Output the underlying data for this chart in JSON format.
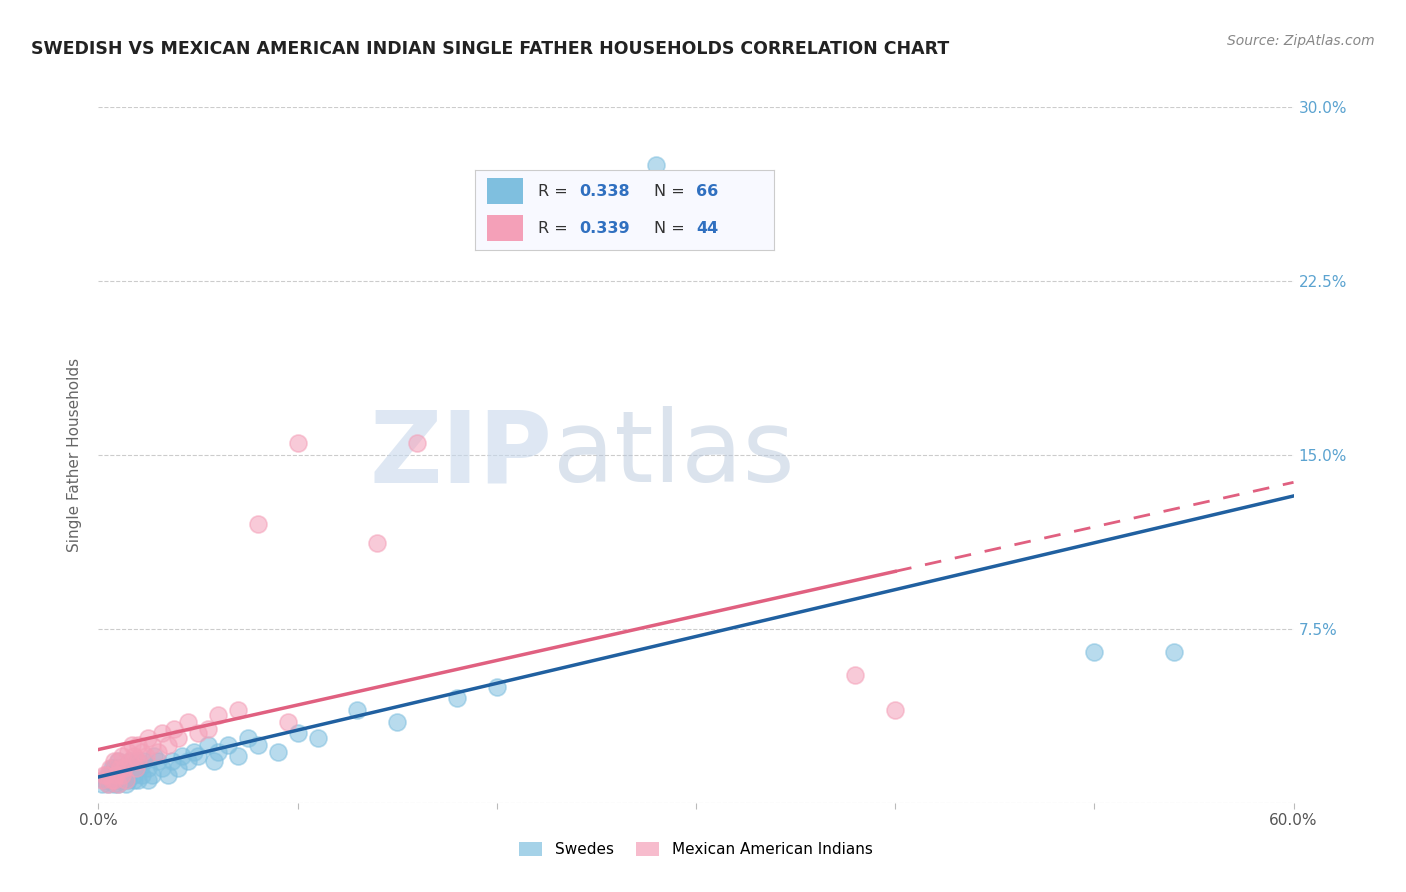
{
  "title": "SWEDISH VS MEXICAN AMERICAN INDIAN SINGLE FATHER HOUSEHOLDS CORRELATION CHART",
  "source": "Source: ZipAtlas.com",
  "ylabel": "Single Father Households",
  "xlim": [
    0.0,
    0.6
  ],
  "ylim": [
    0.0,
    0.3
  ],
  "xticks": [
    0.0,
    0.1,
    0.2,
    0.3,
    0.4,
    0.5,
    0.6
  ],
  "yticks": [
    0.0,
    0.075,
    0.15,
    0.225,
    0.3
  ],
  "grid_color": "#cccccc",
  "background_color": "#ffffff",
  "swedes_color": "#7fbfdf",
  "mexican_color": "#f4a0b8",
  "swedes_line_color": "#2060a0",
  "mexican_line_color": "#e06080",
  "legend_label_swedes": "Swedes",
  "legend_label_mexican": "Mexican American Indians",
  "watermark_zip": "ZIP",
  "watermark_atlas": "atlas",
  "swedes_x": [
    0.002,
    0.003,
    0.004,
    0.005,
    0.005,
    0.006,
    0.007,
    0.007,
    0.008,
    0.008,
    0.008,
    0.009,
    0.009,
    0.01,
    0.01,
    0.01,
    0.011,
    0.011,
    0.012,
    0.012,
    0.013,
    0.013,
    0.014,
    0.015,
    0.015,
    0.015,
    0.016,
    0.017,
    0.018,
    0.018,
    0.019,
    0.02,
    0.02,
    0.021,
    0.022,
    0.023,
    0.025,
    0.025,
    0.027,
    0.028,
    0.03,
    0.032,
    0.035,
    0.037,
    0.04,
    0.042,
    0.045,
    0.048,
    0.05,
    0.055,
    0.058,
    0.06,
    0.065,
    0.07,
    0.075,
    0.08,
    0.09,
    0.1,
    0.11,
    0.13,
    0.15,
    0.18,
    0.2,
    0.28,
    0.5,
    0.54
  ],
  "swedes_y": [
    0.008,
    0.01,
    0.01,
    0.012,
    0.008,
    0.012,
    0.01,
    0.015,
    0.01,
    0.008,
    0.015,
    0.01,
    0.012,
    0.015,
    0.018,
    0.008,
    0.012,
    0.01,
    0.01,
    0.015,
    0.012,
    0.01,
    0.008,
    0.015,
    0.012,
    0.01,
    0.018,
    0.015,
    0.012,
    0.01,
    0.015,
    0.018,
    0.01,
    0.015,
    0.012,
    0.018,
    0.015,
    0.01,
    0.012,
    0.02,
    0.018,
    0.015,
    0.012,
    0.018,
    0.015,
    0.02,
    0.018,
    0.022,
    0.02,
    0.025,
    0.018,
    0.022,
    0.025,
    0.02,
    0.028,
    0.025,
    0.022,
    0.03,
    0.028,
    0.04,
    0.035,
    0.045,
    0.05,
    0.275,
    0.065,
    0.065
  ],
  "mexican_x": [
    0.002,
    0.003,
    0.004,
    0.005,
    0.006,
    0.007,
    0.008,
    0.008,
    0.009,
    0.01,
    0.01,
    0.011,
    0.012,
    0.012,
    0.013,
    0.014,
    0.015,
    0.016,
    0.017,
    0.018,
    0.019,
    0.02,
    0.02,
    0.022,
    0.024,
    0.025,
    0.027,
    0.03,
    0.032,
    0.035,
    0.038,
    0.04,
    0.045,
    0.05,
    0.055,
    0.06,
    0.07,
    0.08,
    0.095,
    0.1,
    0.14,
    0.16,
    0.38,
    0.4
  ],
  "mexican_y": [
    0.01,
    0.012,
    0.012,
    0.008,
    0.015,
    0.01,
    0.018,
    0.01,
    0.012,
    0.018,
    0.008,
    0.015,
    0.012,
    0.02,
    0.015,
    0.01,
    0.022,
    0.018,
    0.025,
    0.02,
    0.015,
    0.025,
    0.018,
    0.022,
    0.02,
    0.028,
    0.025,
    0.022,
    0.03,
    0.025,
    0.032,
    0.028,
    0.035,
    0.03,
    0.032,
    0.038,
    0.04,
    0.12,
    0.035,
    0.155,
    0.112,
    0.155,
    0.055,
    0.04
  ]
}
